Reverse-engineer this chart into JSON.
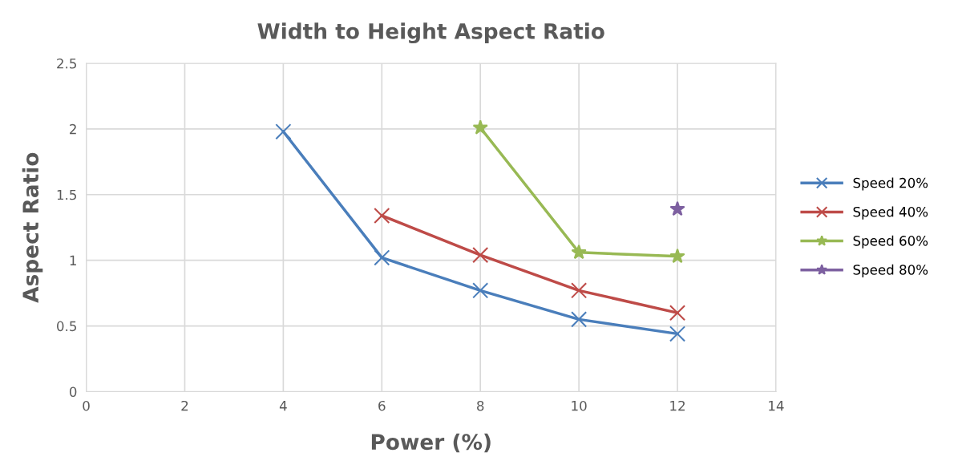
{
  "chart_data": {
    "type": "line",
    "title": "Width to Height Aspect Ratio",
    "xlabel": "Power (%)",
    "ylabel": "Aspect Ratio",
    "series": [
      {
        "name": "Speed 20%",
        "color": "#4a7ebb",
        "marker": "cross",
        "x": [
          4,
          6,
          8,
          10,
          12
        ],
        "values": [
          1.98,
          1.02,
          0.77,
          0.55,
          0.44
        ]
      },
      {
        "name": "Speed 40%",
        "color": "#be4b48",
        "marker": "cross",
        "x": [
          6,
          8,
          10,
          12
        ],
        "values": [
          1.34,
          1.04,
          0.77,
          0.6
        ]
      },
      {
        "name": "Speed 60%",
        "color": "#98b954",
        "marker": "star",
        "x": [
          8,
          10,
          12
        ],
        "values": [
          2.01,
          1.06,
          1.03
        ]
      },
      {
        "name": "Speed 80%",
        "color": "#7d60a0",
        "marker": "star",
        "x": [
          12
        ],
        "values": [
          1.39
        ]
      }
    ],
    "xlim": [
      0,
      14
    ],
    "xticks": [
      0,
      2,
      4,
      6,
      8,
      10,
      12,
      14
    ],
    "ylim": [
      0,
      2.5
    ],
    "yticks": [
      0,
      0.5,
      1,
      1.5,
      2,
      2.5
    ],
    "grid": true,
    "legend": "right",
    "line_style": "solid"
  }
}
